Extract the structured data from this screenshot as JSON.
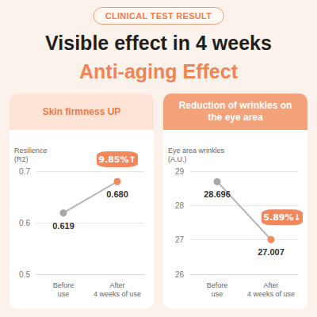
{
  "header": {
    "badge": "CLINICAL TEST RESULT",
    "title": "Visible effect in 4 weeks",
    "subtitle": "Anti-aging Effect"
  },
  "chart_data": [
    {
      "type": "line",
      "title": "Skin firmness UP",
      "ylabel": "Resilience (R2)",
      "categories": [
        "Before use",
        "After 4 weeks of use"
      ],
      "values": [
        0.619,
        0.68
      ],
      "value_labels": [
        "0.619",
        "0.680"
      ],
      "data_labels": true,
      "color": "#b3b3b3",
      "colors": [
        "#a8a8a8",
        "#f2895c"
      ],
      "marker": "circle",
      "ylim": [
        0.5,
        0.7
      ],
      "yticks": [
        0.5,
        0.6,
        0.7
      ],
      "grid": true,
      "annotation": "9.85%↑"
    },
    {
      "type": "line",
      "title": "Reduction of wrinkles on the eye area",
      "ylabel": "Eye area wrinkles (A.U.)",
      "categories": [
        "Before use",
        "After 4 weeks of use"
      ],
      "values": [
        28.696,
        27.007
      ],
      "value_labels": [
        "28.696",
        "27.007"
      ],
      "data_labels": true,
      "color": "#b3b3b3",
      "colors": [
        "#a8a8a8",
        "#f2895c"
      ],
      "marker": "circle",
      "ylim": [
        26,
        29
      ],
      "yticks": [
        26,
        27,
        28,
        29
      ],
      "grid": true,
      "annotation": "5.89%↓"
    }
  ]
}
